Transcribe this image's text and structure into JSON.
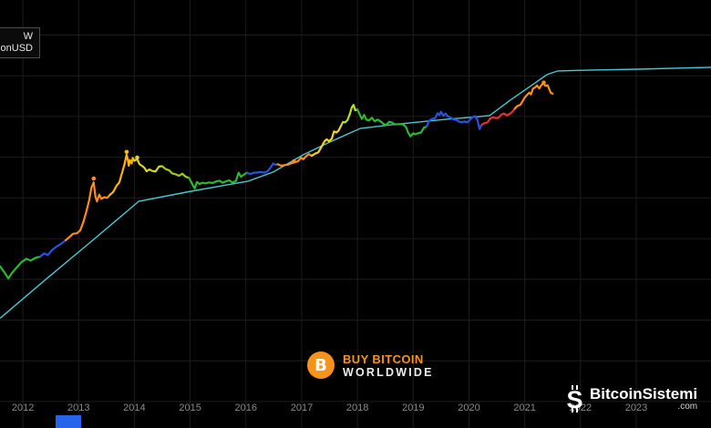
{
  "colors": {
    "background": "#000000",
    "bbw_orange": "#f7931a",
    "blue_rect": "#2564eb",
    "model_cyan": "#46c8d2"
  },
  "legend": {
    "line1": "W",
    "line2": "onUSD"
  },
  "watermarks": {
    "bbw": {
      "symbol": "B",
      "line1": "BUY BITCOIN",
      "line2": "WORLDWIDE"
    },
    "bitcoinsistemi": {
      "glyph": "S",
      "title": "BitcoinSistemi",
      "suffix": ".com"
    }
  },
  "chart_data": {
    "type": "line",
    "title": "",
    "description": "Bitcoin USD price history on log scale (multi-colored segments) with cyan model/projection line flattening after 2021",
    "axes": {
      "x_year_range": [
        2011.59,
        2024.34
      ],
      "y_log10_range": [
        -3.65,
        6.86
      ],
      "y_scale": "log10 USD (no visible labels)",
      "x_ticks": [
        "2012",
        "2013",
        "2014",
        "2015",
        "2016",
        "2017",
        "2018",
        "2019",
        "2020",
        "2021",
        "2022",
        "2023"
      ],
      "y_grid_prices": [
        0.001,
        0.01,
        0.1,
        1,
        10,
        100,
        1000,
        10000,
        100000,
        1000000
      ],
      "grid": true,
      "grid_color": "#1d1d1d",
      "tick_label_color": "#8a8a8a",
      "legend_position": "top-left"
    },
    "price_series": {
      "name": "Bitcoin price (USD)",
      "segments": [
        {
          "color": "#2db92d",
          "points": [
            [
              2011.59,
              2.1
            ],
            [
              2011.66,
              1.55
            ],
            [
              2011.74,
              1.05
            ],
            [
              2011.8,
              1.4
            ],
            [
              2011.88,
              1.9
            ],
            [
              2011.97,
              2.6
            ],
            [
              2012.06,
              3.2
            ],
            [
              2012.14,
              2.9
            ],
            [
              2012.23,
              3.4
            ],
            [
              2012.31,
              3.6
            ]
          ]
        },
        {
          "color": "#2952e3",
          "points": [
            [
              2012.31,
              3.6
            ],
            [
              2012.38,
              4.3
            ],
            [
              2012.45,
              4.0
            ],
            [
              2012.52,
              5.2
            ],
            [
              2012.6,
              6.3
            ],
            [
              2012.68,
              7.4
            ],
            [
              2012.77,
              9.2
            ]
          ]
        },
        {
          "color": "#ff8c1a",
          "points": [
            [
              2012.77,
              9.2
            ],
            [
              2012.83,
              10.8
            ],
            [
              2012.9,
              13.2
            ],
            [
              2012.97,
              13.5
            ],
            [
              2013.03,
              16
            ],
            [
              2013.09,
              27
            ],
            [
              2013.14,
              47
            ],
            [
              2013.19,
              90
            ],
            [
              2013.23,
              180
            ],
            [
              2013.27,
              240
            ],
            [
              2013.3,
              110
            ],
            [
              2013.33,
              82
            ],
            [
              2013.37,
              120
            ],
            [
              2013.41,
              95
            ],
            [
              2013.46,
              104
            ],
            [
              2013.51,
              100
            ],
            [
              2013.56,
              118
            ]
          ]
        },
        {
          "color": "#ffb30f",
          "points": [
            [
              2013.56,
              118
            ],
            [
              2013.62,
              140
            ],
            [
              2013.68,
              200
            ],
            [
              2013.73,
              240
            ],
            [
              2013.78,
              420
            ],
            [
              2013.82,
              650
            ],
            [
              2013.86,
              1150
            ],
            [
              2013.88,
              900
            ],
            [
              2013.9,
              620
            ],
            [
              2013.92,
              850
            ],
            [
              2013.95,
              700
            ],
            [
              2013.97,
              960
            ],
            [
              2014.0,
              820
            ]
          ]
        },
        {
          "color": "#d9d326",
          "points": [
            [
              2014.0,
              820
            ],
            [
              2014.05,
              900
            ],
            [
              2014.09,
              680
            ],
            [
              2014.13,
              620
            ],
            [
              2014.18,
              550
            ],
            [
              2014.22,
              450
            ],
            [
              2014.27,
              500
            ],
            [
              2014.32,
              460
            ],
            [
              2014.38,
              445
            ],
            [
              2014.44,
              590
            ],
            [
              2014.5,
              600
            ]
          ]
        },
        {
          "color": "#9acd1e",
          "points": [
            [
              2014.5,
              600
            ],
            [
              2014.56,
              510
            ],
            [
              2014.62,
              480
            ],
            [
              2014.68,
              400
            ],
            [
              2014.74,
              380
            ],
            [
              2014.8,
              350
            ],
            [
              2014.86,
              395
            ],
            [
              2014.92,
              330
            ],
            [
              2014.98,
              310
            ]
          ]
        },
        {
          "color": "#2db92d",
          "points": [
            [
              2014.98,
              310
            ],
            [
              2015.04,
              215
            ],
            [
              2015.08,
              170
            ],
            [
              2015.12,
              245
            ],
            [
              2015.17,
              220
            ],
            [
              2015.22,
              235
            ],
            [
              2015.28,
              228
            ],
            [
              2015.34,
              240
            ],
            [
              2015.4,
              232
            ],
            [
              2015.47,
              255
            ],
            [
              2015.53,
              265
            ],
            [
              2015.58,
              235
            ],
            [
              2015.64,
              255
            ],
            [
              2015.7,
              270
            ],
            [
              2015.76,
              238
            ],
            [
              2015.82,
              260
            ],
            [
              2015.87,
              420
            ],
            [
              2015.91,
              330
            ],
            [
              2015.96,
              370
            ],
            [
              2016.02,
              420
            ]
          ]
        },
        {
          "color": "#2952e3",
          "points": [
            [
              2016.02,
              420
            ],
            [
              2016.08,
              385
            ],
            [
              2016.14,
              415
            ],
            [
              2016.2,
              420
            ],
            [
              2016.27,
              430
            ],
            [
              2016.33,
              418
            ],
            [
              2016.39,
              455
            ],
            [
              2016.45,
              580
            ],
            [
              2016.49,
              700
            ],
            [
              2016.53,
              650
            ],
            [
              2016.57,
              670
            ]
          ]
        },
        {
          "color": "#ff8c1a",
          "points": [
            [
              2016.57,
              670
            ],
            [
              2016.63,
              620
            ],
            [
              2016.69,
              640
            ],
            [
              2016.75,
              655
            ],
            [
              2016.81,
              700
            ],
            [
              2016.87,
              745
            ],
            [
              2016.93,
              790
            ],
            [
              2016.99,
              970
            ],
            [
              2017.03,
              890
            ],
            [
              2017.08,
              1060
            ],
            [
              2017.13,
              1190
            ],
            [
              2017.18,
              1080
            ]
          ]
        },
        {
          "color": "#ffd11a",
          "points": [
            [
              2017.18,
              1080
            ],
            [
              2017.24,
              1220
            ],
            [
              2017.3,
              1320
            ],
            [
              2017.36,
              1850
            ],
            [
              2017.41,
              2450
            ],
            [
              2017.45,
              2750
            ],
            [
              2017.49,
              2450
            ],
            [
              2017.54,
              2850
            ],
            [
              2017.58,
              4300
            ],
            [
              2017.62,
              4050
            ],
            [
              2017.66,
              4450
            ],
            [
              2017.7,
              5700
            ]
          ]
        },
        {
          "color": "#b8e020",
          "points": [
            [
              2017.7,
              5700
            ],
            [
              2017.74,
              7300
            ],
            [
              2017.78,
              7150
            ],
            [
              2017.82,
              8100
            ],
            [
              2017.86,
              11200
            ],
            [
              2017.9,
              16800
            ],
            [
              2017.93,
              19200
            ],
            [
              2017.96,
              14200
            ],
            [
              2018.0,
              14800
            ]
          ]
        },
        {
          "color": "#2db92d",
          "points": [
            [
              2018.0,
              14800
            ],
            [
              2018.04,
              11200
            ],
            [
              2018.08,
              8700
            ],
            [
              2018.12,
              10900
            ],
            [
              2018.16,
              8300
            ],
            [
              2018.21,
              8100
            ],
            [
              2018.26,
              9300
            ],
            [
              2018.31,
              7600
            ],
            [
              2018.36,
              8400
            ],
            [
              2018.42,
              7500
            ],
            [
              2018.47,
              6500
            ],
            [
              2018.52,
              6300
            ],
            [
              2018.57,
              7400
            ],
            [
              2018.62,
              7100
            ],
            [
              2018.67,
              6400
            ],
            [
              2018.72,
              6500
            ],
            [
              2018.77,
              6450
            ],
            [
              2018.82,
              6350
            ],
            [
              2018.87,
              5500
            ],
            [
              2018.91,
              4000
            ],
            [
              2018.95,
              3250
            ],
            [
              2019.0,
              3850
            ],
            [
              2019.04,
              3650
            ],
            [
              2019.09,
              3900
            ],
            [
              2019.14,
              4050
            ],
            [
              2019.19,
              5250
            ],
            [
              2019.24,
              5700
            ]
          ]
        },
        {
          "color": "#2952e3",
          "points": [
            [
              2019.24,
              5700
            ],
            [
              2019.29,
              8000
            ],
            [
              2019.34,
              8700
            ],
            [
              2019.39,
              9000
            ],
            [
              2019.44,
              12000
            ],
            [
              2019.47,
              10800
            ],
            [
              2019.5,
              13000
            ],
            [
              2019.54,
              10400
            ],
            [
              2019.58,
              11800
            ],
            [
              2019.62,
              10100
            ],
            [
              2019.67,
              9400
            ],
            [
              2019.72,
              8450
            ],
            [
              2019.77,
              8250
            ],
            [
              2019.82,
              7450
            ],
            [
              2019.87,
              7150
            ],
            [
              2019.92,
              7550
            ],
            [
              2019.97,
              7150
            ],
            [
              2020.02,
              8400
            ],
            [
              2020.07,
              9700
            ],
            [
              2020.11,
              10200
            ],
            [
              2020.15,
              8200
            ],
            [
              2020.19,
              4900
            ],
            [
              2020.23,
              6300
            ]
          ]
        },
        {
          "color": "#e33030",
          "points": [
            [
              2020.23,
              6300
            ],
            [
              2020.28,
              6900
            ],
            [
              2020.33,
              7150
            ],
            [
              2020.38,
              8900
            ],
            [
              2020.43,
              9500
            ],
            [
              2020.48,
              9150
            ],
            [
              2020.53,
              9250
            ],
            [
              2020.58,
              11100
            ],
            [
              2020.63,
              11800
            ],
            [
              2020.68,
              10600
            ],
            [
              2020.73,
              11600
            ],
            [
              2020.78,
              13100
            ],
            [
              2020.82,
              15600
            ]
          ]
        },
        {
          "color": "#ff8c1a",
          "points": [
            [
              2020.82,
              15600
            ],
            [
              2020.87,
              18200
            ],
            [
              2020.92,
              19300
            ],
            [
              2020.96,
              23500
            ],
            [
              2021.0,
              29200
            ],
            [
              2021.04,
              33500
            ],
            [
              2021.08,
              38500
            ],
            [
              2021.11,
              34800
            ],
            [
              2021.15,
              48500
            ],
            [
              2021.19,
              52000
            ],
            [
              2021.22,
              58000
            ],
            [
              2021.26,
              48500
            ],
            [
              2021.3,
              59500
            ],
            [
              2021.34,
              64400
            ],
            [
              2021.37,
              56000
            ],
            [
              2021.41,
              58500
            ],
            [
              2021.44,
              46500
            ],
            [
              2021.47,
              37500
            ],
            [
              2021.5,
              36500
            ]
          ]
        }
      ]
    },
    "model_series": {
      "name": "Projection / model line",
      "color": "#46c8d2",
      "points": [
        [
          2011.59,
          0.11
        ],
        [
          2012.41,
          1.0
        ],
        [
          2013.23,
          8.6
        ],
        [
          2014.08,
          83
        ],
        [
          2015.02,
          146
        ],
        [
          2016.04,
          258
        ],
        [
          2016.49,
          432
        ],
        [
          2017.03,
          1150
        ],
        [
          2017.47,
          2240
        ],
        [
          2018.05,
          5100
        ],
        [
          2018.62,
          6280
        ],
        [
          2019.11,
          7340
        ],
        [
          2019.6,
          8550
        ],
        [
          2020.02,
          9490
        ],
        [
          2020.37,
          10520
        ],
        [
          2020.74,
          25200
        ],
        [
          2021.07,
          51900
        ],
        [
          2021.4,
          106900
        ],
        [
          2021.59,
          131000
        ],
        [
          2022.21,
          138000
        ],
        [
          2023.03,
          145000
        ],
        [
          2024.34,
          161000
        ]
      ]
    },
    "markers": [
      {
        "year": 2013.27,
        "price": 300,
        "color": "#ff8c1a"
      },
      {
        "year": 2013.86,
        "price": 1350,
        "color": "#ffb30f"
      },
      {
        "year": 2014.05,
        "price": 980,
        "color": "#d9d326"
      },
      {
        "year": 2016.86,
        "price": 790,
        "color": "#ff8c1a"
      },
      {
        "year": 2021.34,
        "price": 68000,
        "color": "#ff8c1a"
      }
    ]
  }
}
